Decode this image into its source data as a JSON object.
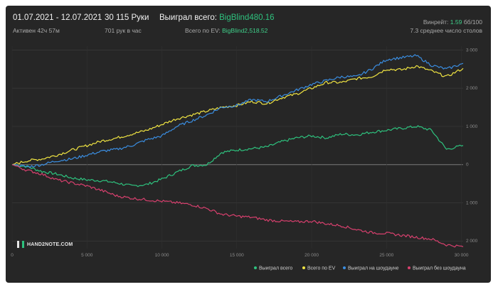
{
  "header": {
    "date_range": "01.07.2021 - 12.07.2021",
    "active": "Активен 42ч 57м",
    "hands": "30 115 Руки",
    "hands_per_hour": "701 рук в час",
    "won_total_label": "Выиграл всего:",
    "won_total_value": "BigBlind480.16",
    "ev_label": "Всего по EV:",
    "ev_value": "BigBlind2,518.52",
    "winrate_label": "Винрейт:",
    "winrate_value": "1.59",
    "winrate_suffix": "бб/100",
    "avg_tables": "7.3 среднее число столов"
  },
  "logo": {
    "text": "HAND2NOTE.COM"
  },
  "colors": {
    "background": "#262626",
    "green": "#2ec27e",
    "yellow": "#f0e442",
    "blue": "#3a8de0",
    "pink": "#d8406e"
  },
  "chart_data": {
    "type": "line",
    "xlim": [
      0,
      30115
    ],
    "ylim": [
      -2200,
      3100
    ],
    "x_ticks": [
      0,
      5000,
      10000,
      15000,
      20000,
      25000,
      30000
    ],
    "x_tick_labels": [
      "0",
      "5 000",
      "10 000",
      "15 000",
      "20 000",
      "25 000",
      "30 000"
    ],
    "y_ticks": [
      3000,
      2000,
      1000,
      0,
      -1000,
      -2000
    ],
    "y_tick_labels": [
      "3 000",
      "2 000",
      "1 000",
      "0",
      "1 000",
      "2 000"
    ],
    "grid": true,
    "legend_position": "bottom-right",
    "series": [
      {
        "name": "Выиграл всего",
        "color": "#2ec27e",
        "x": [
          0,
          1000,
          2000,
          3000,
          4000,
          5000,
          6000,
          7000,
          8000,
          9000,
          10000,
          11000,
          12000,
          13000,
          14000,
          15000,
          16000,
          17000,
          18000,
          19000,
          20000,
          21000,
          22000,
          23000,
          24000,
          25000,
          26000,
          27000,
          28000,
          29000,
          30115
        ],
        "y": [
          0,
          -50,
          -180,
          -250,
          -350,
          -400,
          -420,
          -480,
          -560,
          -520,
          -380,
          -200,
          -30,
          0,
          320,
          380,
          420,
          460,
          600,
          700,
          750,
          700,
          800,
          780,
          850,
          900,
          950,
          1000,
          900,
          400,
          500
        ]
      },
      {
        "name": "Всего по EV",
        "color": "#f0e442",
        "x": [
          0,
          1000,
          2000,
          3000,
          4000,
          5000,
          6000,
          7000,
          8000,
          9000,
          10000,
          11000,
          12000,
          13000,
          14000,
          15000,
          16000,
          17000,
          18000,
          19000,
          20000,
          21000,
          22000,
          23000,
          24000,
          25000,
          26000,
          27000,
          28000,
          29000,
          30115
        ],
        "y": [
          0,
          100,
          150,
          250,
          380,
          500,
          620,
          700,
          800,
          900,
          1050,
          1200,
          1300,
          1400,
          1500,
          1550,
          1650,
          1600,
          1750,
          1850,
          2000,
          2150,
          2150,
          2250,
          2300,
          2500,
          2480,
          2580,
          2450,
          2300,
          2520
        ]
      },
      {
        "name": "Выиграл на шоудауне",
        "color": "#3a8de0",
        "x": [
          0,
          1000,
          2000,
          3000,
          4000,
          5000,
          6000,
          7000,
          8000,
          9000,
          10000,
          11000,
          12000,
          13000,
          14000,
          15000,
          16000,
          17000,
          18000,
          19000,
          20000,
          21000,
          22000,
          23000,
          24000,
          25000,
          26000,
          27000,
          28000,
          29000,
          30115
        ],
        "y": [
          0,
          -60,
          0,
          100,
          150,
          250,
          350,
          400,
          500,
          650,
          750,
          1000,
          1150,
          1300,
          1500,
          1550,
          1700,
          1650,
          1800,
          1950,
          2100,
          2200,
          2300,
          2300,
          2500,
          2750,
          2800,
          2850,
          2600,
          2500,
          2650
        ]
      },
      {
        "name": "Выиграл без шоудауна",
        "color": "#d8406e",
        "x": [
          0,
          1000,
          2000,
          3000,
          4000,
          5000,
          6000,
          7000,
          8000,
          9000,
          10000,
          11000,
          12000,
          13000,
          14000,
          15000,
          16000,
          17000,
          18000,
          19000,
          20000,
          21000,
          22000,
          23000,
          24000,
          25000,
          26000,
          27000,
          28000,
          29000,
          30115
        ],
        "y": [
          0,
          -150,
          -250,
          -400,
          -480,
          -560,
          -680,
          -820,
          -880,
          -920,
          -960,
          -1000,
          -1050,
          -1150,
          -1300,
          -1350,
          -1380,
          -1450,
          -1480,
          -1500,
          -1480,
          -1550,
          -1600,
          -1700,
          -1780,
          -1800,
          -1850,
          -1900,
          -1950,
          -2100,
          -2150
        ]
      }
    ]
  }
}
